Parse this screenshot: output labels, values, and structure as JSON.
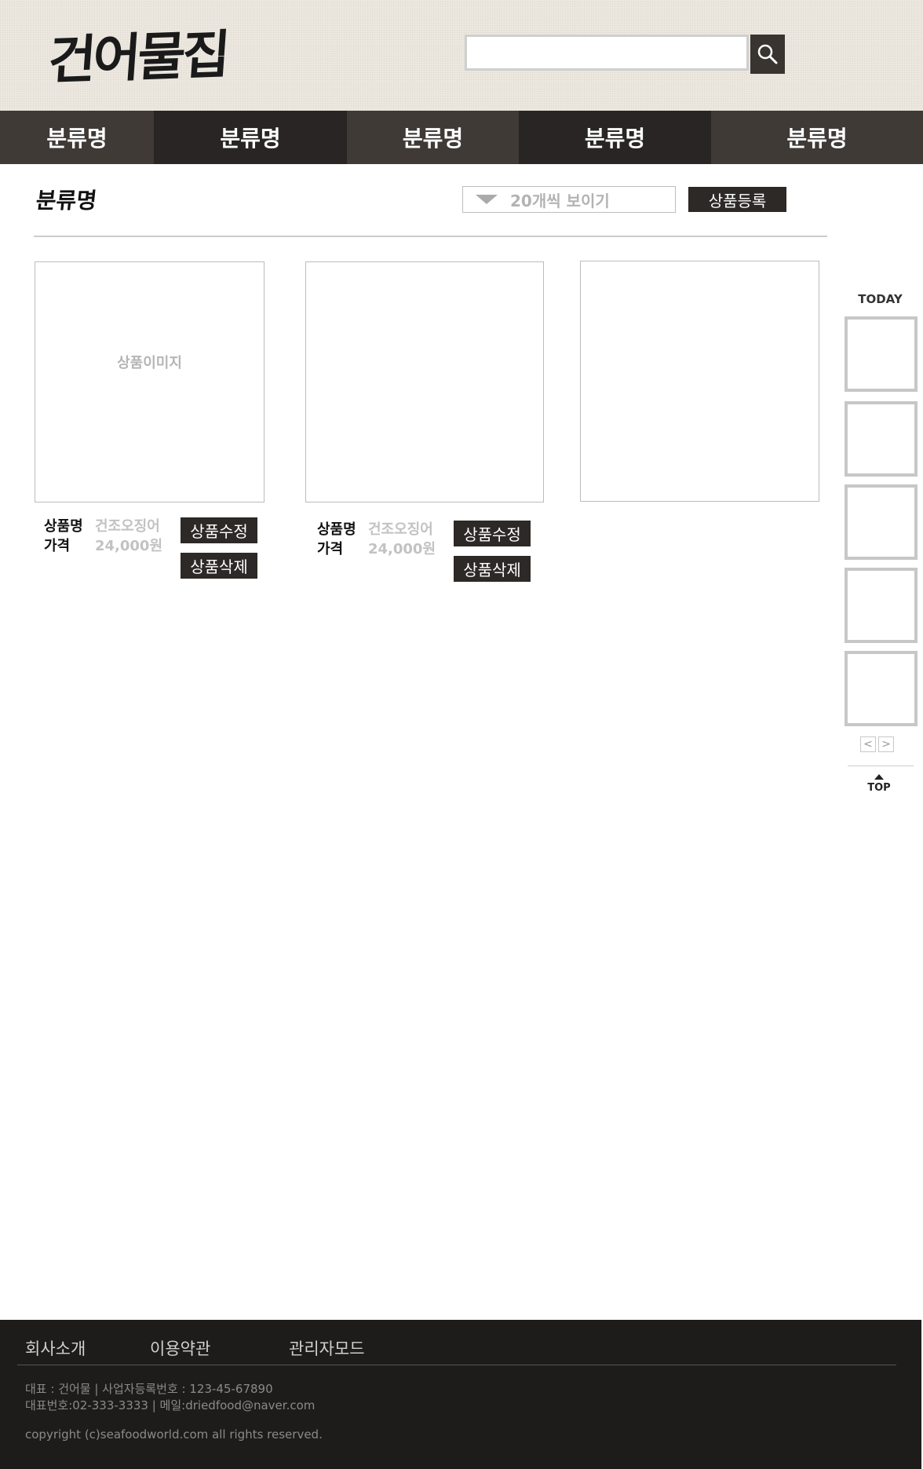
{
  "header": {
    "logo": "건어물집",
    "search": {
      "value": "",
      "placeholder": ""
    },
    "search_icon": "search-icon"
  },
  "nav": {
    "items": [
      {
        "label": "분류명",
        "bg": "#3f3a36"
      },
      {
        "label": "분류명",
        "bg": "#282524"
      },
      {
        "label": "분류명",
        "bg": "#3f3a36"
      },
      {
        "label": "분류명",
        "bg": "#282524"
      },
      {
        "label": "분류명",
        "bg": "#3f3a36"
      }
    ]
  },
  "category": {
    "title": "분류명",
    "per_page": "20개씩 보이기",
    "register_button": "상품등록"
  },
  "products": [
    {
      "image_label": "상품이미지",
      "name_label": "상품명",
      "name": "건조오징어",
      "price_label": "가격",
      "price": "24,000원",
      "edit_button": "상품수정",
      "delete_button": "상품삭제"
    },
    {
      "image_label": "",
      "name_label": "상품명",
      "name": "건조오징어",
      "price_label": "가격",
      "price": "24,000원",
      "edit_button": "상품수정",
      "delete_button": "상품삭제"
    },
    {
      "image_label": ""
    }
  ],
  "sidebar": {
    "today_title": "TODAY",
    "prev_icon": "chevron-left-icon",
    "next_icon": "chevron-right-icon",
    "prev": "<",
    "next": ">",
    "top_label": "TOP"
  },
  "footer": {
    "links": [
      "회사소개",
      "이용약관",
      "관리자모드"
    ],
    "info_line1": "대표 : 건어물  |  사업자등록번호 : 123-45-67890",
    "info_line2": "대표번호:02-333-3333  |  메일:driedfood@naver.com",
    "copyright": "copyright (c)seafoodworld.com all rights reserved."
  },
  "colors": {
    "header_bg": "#ede8e0",
    "dark": "#2d2926",
    "footer_bg": "#1e1c1b"
  }
}
